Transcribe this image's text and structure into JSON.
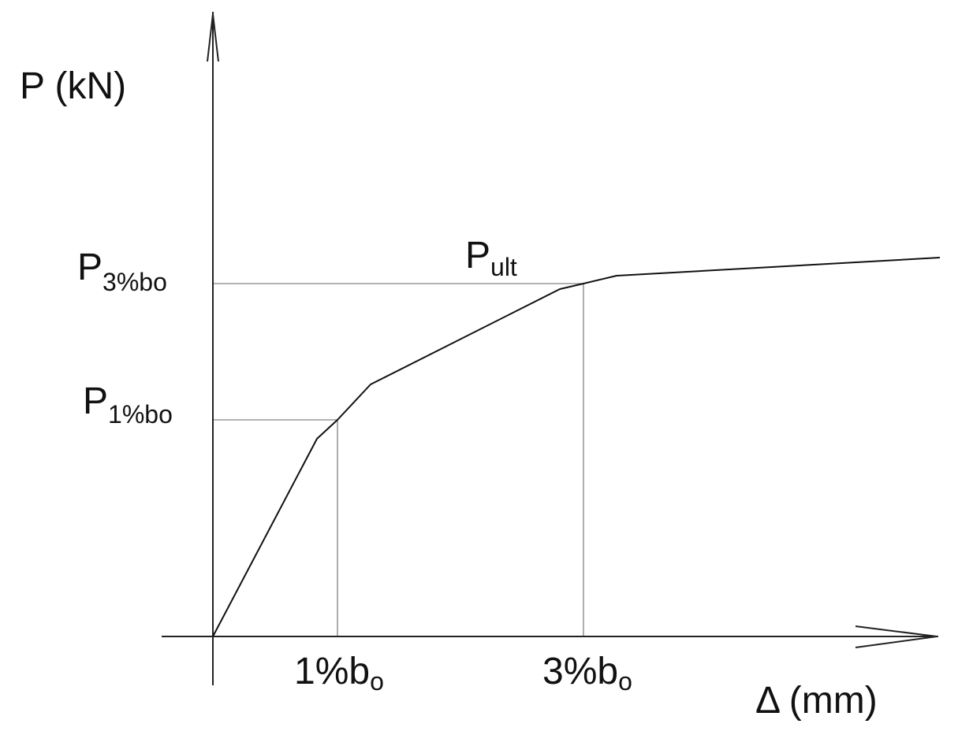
{
  "axes": {
    "y_label": "P (kN)",
    "x_label": "Δ (mm)"
  },
  "labels": {
    "p_3": {
      "main": "P",
      "sub": "3%bo"
    },
    "p_1": {
      "main": "P",
      "sub": "1%bo"
    },
    "p_ult": {
      "main": "P",
      "sub": "ult"
    },
    "x_1": {
      "main": "1%b",
      "sub": "o"
    },
    "x_3": {
      "main": "3%b",
      "sub": "o"
    }
  }
}
